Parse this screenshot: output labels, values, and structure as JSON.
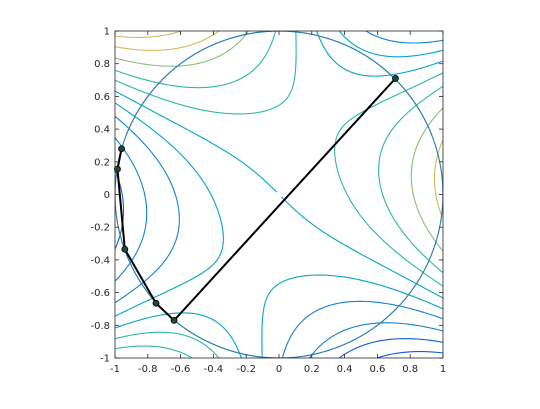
{
  "chart_data": {
    "type": "line",
    "title": "",
    "xlabel": "",
    "ylabel": "",
    "xlim": [
      -1,
      1
    ],
    "ylim": [
      -1,
      1
    ],
    "x_ticks": [
      -1,
      -0.8,
      -0.6,
      -0.4,
      -0.2,
      0,
      0.2,
      0.4,
      0.6,
      0.8,
      1
    ],
    "y_ticks": [
      -1,
      -0.8,
      -0.6,
      -0.4,
      -0.2,
      0,
      0.2,
      0.4,
      0.6,
      0.8,
      1
    ],
    "x_tick_labels": [
      "-1",
      "-0.8",
      "-0.6",
      "-0.4",
      "-0.2",
      "0",
      "0.2",
      "0.4",
      "0.6",
      "0.8",
      "1"
    ],
    "y_tick_labels": [
      "-1",
      "-0.8",
      "-0.6",
      "-0.4",
      "-0.2",
      "0",
      "0.2",
      "0.4",
      "0.6",
      "0.8",
      "1"
    ],
    "grid": false,
    "circle": {
      "center": [
        0,
        0
      ],
      "radius": 1,
      "color": "#2a7fb0"
    },
    "contour_function": "x^3 - 3*x*y^2 + 0.55*(x + y)",
    "contour_levels": [
      -2.2,
      -1.8,
      -1.4,
      -1.0,
      -0.6,
      -0.3,
      0.0,
      0.3,
      0.6,
      1.0,
      1.4,
      1.8,
      2.2,
      2.6,
      3.0
    ],
    "colormap": [
      "#352a87",
      "#0f5cdd",
      "#1481d6",
      "#06a4ca",
      "#2eb7a4",
      "#87bf77",
      "#d1bb59",
      "#fec832",
      "#f9fb0e"
    ],
    "path": {
      "color": "#000000",
      "marker_color": "#1f4a3a",
      "points": [
        {
          "x": 0.71,
          "y": 0.71
        },
        {
          "x": -0.64,
          "y": -0.77
        },
        {
          "x": -0.75,
          "y": -0.665
        },
        {
          "x": -0.94,
          "y": -0.335
        },
        {
          "x": -0.985,
          "y": 0.155
        },
        {
          "x": -0.96,
          "y": 0.28
        }
      ]
    }
  }
}
